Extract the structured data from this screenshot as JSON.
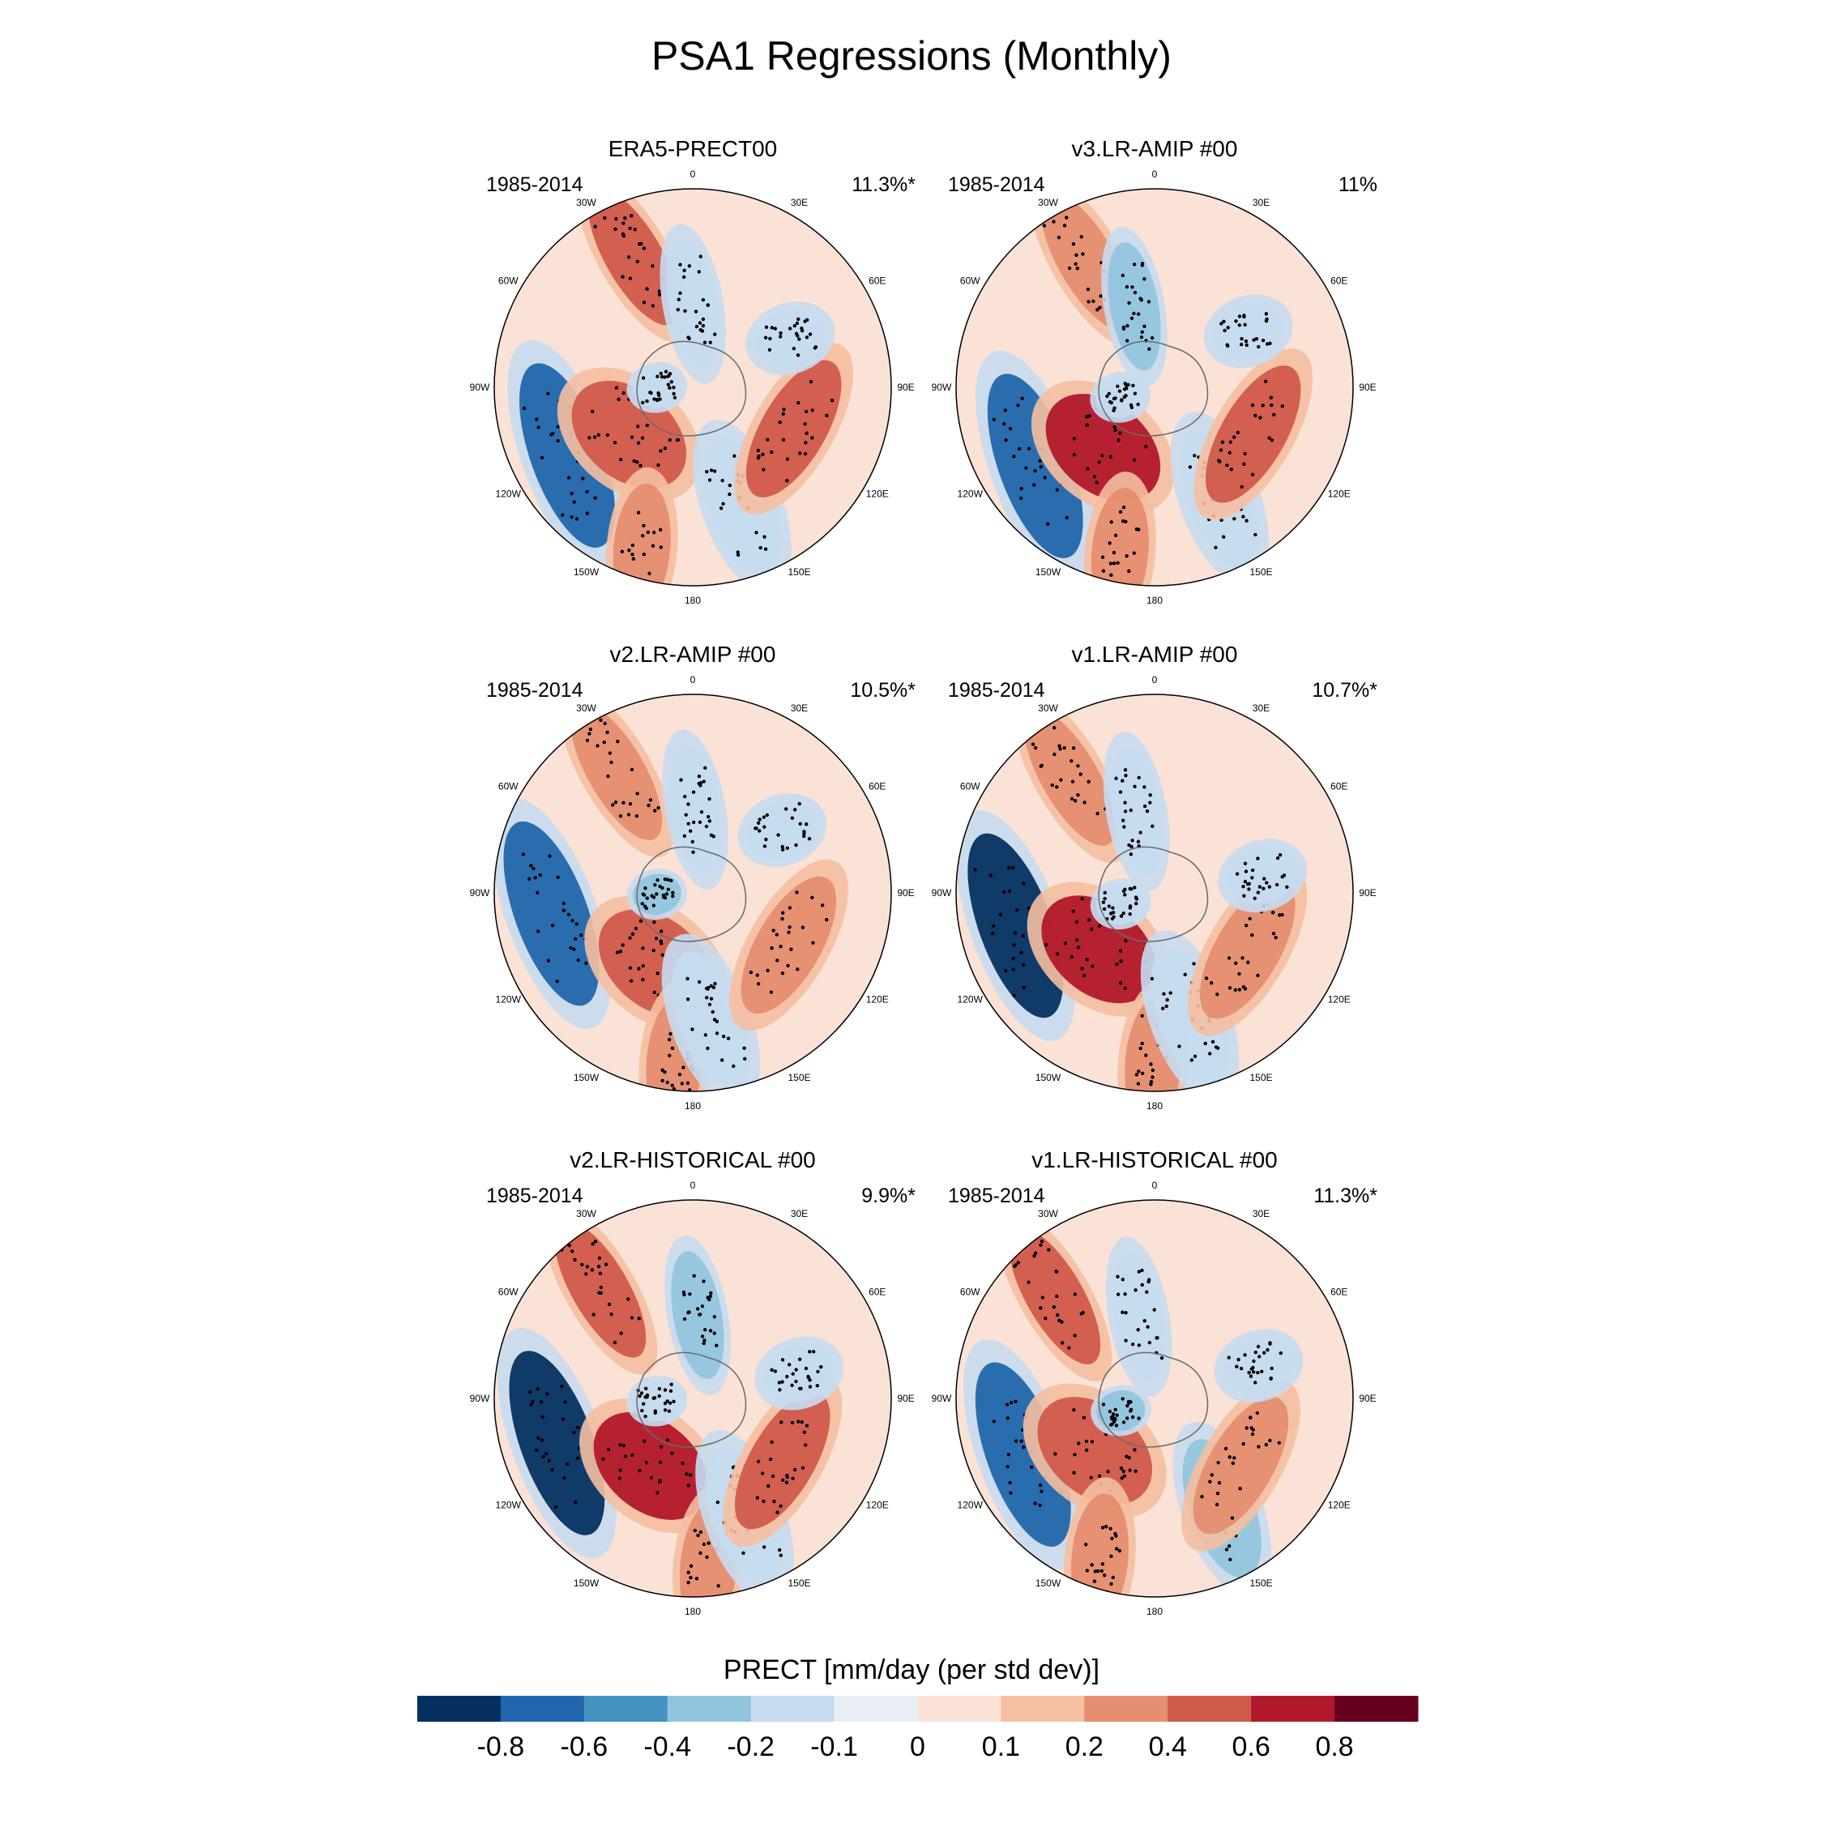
{
  "title": "PSA1 Regressions (Monthly)",
  "chart_data": {
    "type": "heatmap",
    "projection": "south polar stereographic",
    "variable": "PRECT",
    "colorbar": {
      "title": "PRECT [mm/day (per std dev)]",
      "levels": [
        "-0.8",
        "-0.6",
        "-0.4",
        "-0.2",
        "-0.1",
        "0",
        "0.1",
        "0.2",
        "0.4",
        "0.6",
        "0.8"
      ],
      "colors": [
        "#053061",
        "#2166ac",
        "#4393c3",
        "#92c5de",
        "#c6dbef",
        "#e8eef4",
        "#fbe2d6",
        "#f5bfa1",
        "#e58e70",
        "#d15a4b",
        "#b2182b",
        "#67001f"
      ]
    },
    "longitude_labels": [
      "0",
      "30E",
      "60E",
      "90E",
      "120E",
      "150E",
      "180",
      "150W",
      "120W",
      "90W",
      "60W",
      "30W"
    ],
    "panels": [
      {
        "title": "ERA5-PRECT00",
        "years": "1985-2014",
        "variance_explained": "11.3%*"
      },
      {
        "title": "v3.LR-AMIP  #00",
        "years": "1985-2014",
        "variance_explained": "11%"
      },
      {
        "title": "v2.LR-AMIP  #00",
        "years": "1985-2014",
        "variance_explained": "10.5%*"
      },
      {
        "title": "v1.LR-AMIP  #00",
        "years": "1985-2014",
        "variance_explained": "10.7%*"
      },
      {
        "title": "v2.LR-HISTORICAL  #00",
        "years": "1985-2014",
        "variance_explained": "9.9%*"
      },
      {
        "title": "v1.LR-HISTORICAL  #00",
        "years": "1985-2014",
        "variance_explained": "11.3%*"
      }
    ]
  }
}
